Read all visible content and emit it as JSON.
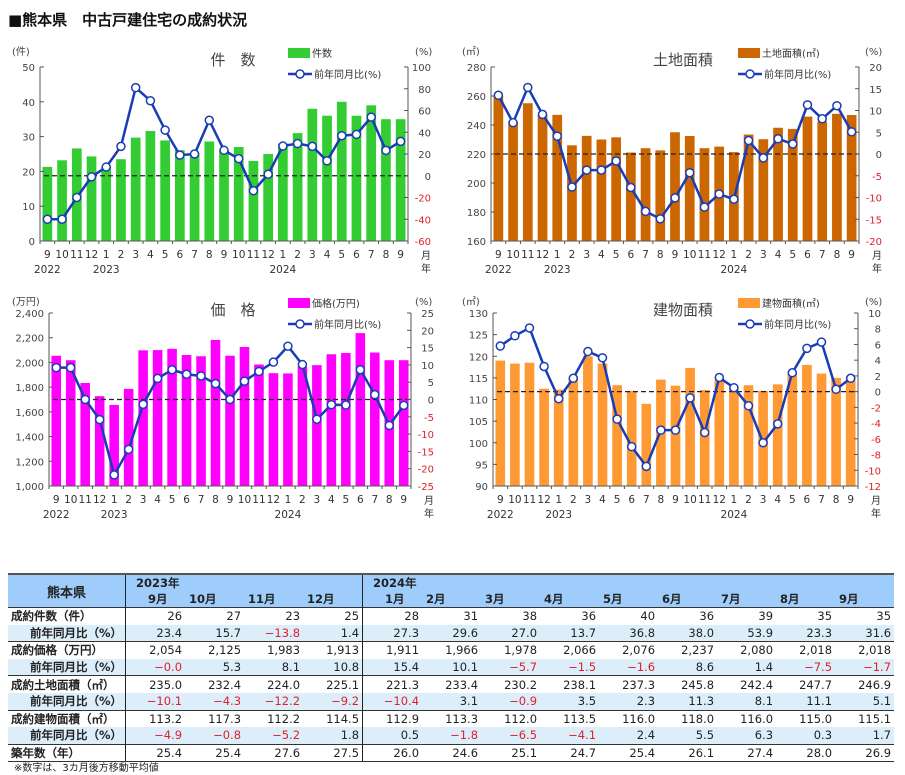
{
  "title": "■熊本県　中古戸建住宅の成約状況",
  "months": [
    "9",
    "10",
    "11",
    "12",
    "1",
    "2",
    "3",
    "4",
    "5",
    "6",
    "7",
    "8",
    "9",
    "10",
    "11",
    "12",
    "1",
    "2",
    "3",
    "4",
    "5",
    "6",
    "7",
    "8",
    "9"
  ],
  "years": [
    {
      "label": "2022",
      "index": 0
    },
    {
      "label": "2023",
      "index": 4
    },
    {
      "label": "2024",
      "index": 16
    }
  ],
  "axis_month_label": "月",
  "axis_year_label": "年",
  "line_legend": "前年同月比(%)",
  "colors": {
    "line": "#1a3cb4",
    "negative": "#e0202a"
  },
  "chart_data": [
    {
      "type": "bar",
      "title": "件　数",
      "left_unit": "(件)",
      "right_unit": "(%)",
      "bar_legend": "件数",
      "bar_color": "#33cc33",
      "left_range": [
        0,
        50
      ],
      "left_step": 10,
      "right_range": [
        -60,
        100
      ],
      "right_step": 20,
      "left_comma": false,
      "bars": [
        21.3,
        23.2,
        26.6,
        24.3,
        21.5,
        23.5,
        29.7,
        31.6,
        28.9,
        26.1,
        25.3,
        28.6,
        26,
        27,
        23,
        25,
        28,
        31,
        38,
        36,
        40,
        36,
        39,
        35,
        35
      ],
      "yoy": [
        -40,
        -40,
        -20,
        -1,
        8,
        27,
        81,
        69,
        42,
        19,
        20,
        51,
        23.4,
        15.7,
        -13.8,
        1.4,
        27.3,
        29.6,
        27.0,
        13.7,
        36.8,
        38.0,
        53.9,
        23.3,
        31.6
      ]
    },
    {
      "type": "bar",
      "title": "土地面積",
      "left_unit": "(㎡)",
      "right_unit": "(%)",
      "bar_legend": "土地面積(㎡)",
      "bar_color": "#cc6600",
      "left_range": [
        160,
        280
      ],
      "left_step": 20,
      "right_range": [
        -20,
        20
      ],
      "right_step": 5,
      "left_comma": false,
      "bars": [
        260,
        242,
        255,
        247,
        247,
        226,
        232.5,
        230,
        231.5,
        221,
        224,
        222.5,
        235.0,
        232.4,
        224.0,
        225.1,
        221.3,
        233.4,
        230.2,
        238.1,
        237.3,
        245.8,
        242.4,
        247.7,
        246.9
      ],
      "yoy": [
        13.5,
        7.2,
        15.3,
        9.1,
        4.1,
        -7.6,
        -3.7,
        -3.7,
        -1.6,
        -7.7,
        -13.2,
        -14.9,
        -10.1,
        -4.3,
        -12.2,
        -9.2,
        -10.4,
        3.1,
        -0.9,
        3.5,
        2.3,
        11.3,
        8.1,
        11.1,
        5.1
      ]
    },
    {
      "type": "bar",
      "title": "価　格",
      "left_unit": "(万円)",
      "right_unit": "(%)",
      "bar_legend": "価格(万円)",
      "bar_color": "#ff00ff",
      "left_range": [
        1000,
        2400
      ],
      "left_step": 200,
      "right_range": [
        -25,
        25
      ],
      "right_step": 5,
      "left_comma": true,
      "bars": [
        2054,
        2018,
        1834,
        1727,
        1656,
        1786,
        2098,
        2100,
        2110,
        2060,
        2050,
        2182,
        2054,
        2125,
        1983,
        1913,
        1911,
        1966,
        1978,
        2066,
        2076,
        2237,
        2080,
        2018,
        2018
      ],
      "yoy": [
        9.2,
        9.2,
        0,
        -5.8,
        -21.8,
        -14.4,
        -1.4,
        6.1,
        8.6,
        7.3,
        6.8,
        4.6,
        -0.0,
        5.3,
        8.1,
        10.8,
        15.4,
        10.1,
        -5.7,
        -1.5,
        -1.6,
        8.6,
        1.4,
        -7.5,
        -1.7
      ]
    },
    {
      "type": "bar",
      "title": "建物面積",
      "left_unit": "(㎡)",
      "right_unit": "(%)",
      "bar_legend": "建物面積(㎡)",
      "bar_color": "#ff9933",
      "left_range": [
        90,
        130
      ],
      "left_step": 5,
      "right_range": [
        -12,
        10
      ],
      "right_step": 2,
      "left_comma": false,
      "bars": [
        119,
        118.3,
        118.5,
        112.5,
        112.3,
        114.8,
        120,
        118.3,
        113.3,
        112,
        109,
        114.6,
        113.2,
        117.3,
        112.2,
        114.5,
        112.9,
        113.3,
        112.0,
        113.5,
        116.0,
        118.0,
        116.0,
        115.0,
        115.1
      ],
      "yoy": [
        5.8,
        7.1,
        8.1,
        3.2,
        -0.9,
        1.7,
        5.1,
        4.3,
        -3.5,
        -7.0,
        -9.5,
        -4.9,
        -4.9,
        -0.8,
        -5.2,
        1.8,
        0.5,
        -1.8,
        -6.5,
        -4.1,
        2.4,
        5.5,
        6.3,
        0.3,
        1.7
      ]
    }
  ],
  "table": {
    "corner": "熊本県",
    "year_2023": "2023年",
    "year_2024": "2024年",
    "columns": [
      "9月",
      "10月",
      "11月",
      "12月",
      "1月",
      "2月",
      "3月",
      "4月",
      "5月",
      "6月",
      "7月",
      "8月",
      "9月"
    ],
    "rows": [
      {
        "label": "成約件数（件）",
        "sub": false,
        "values": [
          "26",
          "27",
          "23",
          "25",
          "28",
          "31",
          "38",
          "36",
          "40",
          "36",
          "39",
          "35",
          "35"
        ]
      },
      {
        "label": "前年同月比（%）",
        "sub": true,
        "values": [
          "23.4",
          "15.7",
          "−13.8",
          "1.4",
          "27.3",
          "29.6",
          "27.0",
          "13.7",
          "36.8",
          "38.0",
          "53.9",
          "23.3",
          "31.6"
        ]
      },
      {
        "label": "成約価格（万円）",
        "sub": false,
        "values": [
          "2,054",
          "2,125",
          "1,983",
          "1,913",
          "1,911",
          "1,966",
          "1,978",
          "2,066",
          "2,076",
          "2,237",
          "2,080",
          "2,018",
          "2,018"
        ]
      },
      {
        "label": "前年同月比（%）",
        "sub": true,
        "values": [
          "−0.0",
          "5.3",
          "8.1",
          "10.8",
          "15.4",
          "10.1",
          "−5.7",
          "−1.5",
          "−1.6",
          "8.6",
          "1.4",
          "−7.5",
          "−1.7"
        ]
      },
      {
        "label": "成約土地面積（㎡）",
        "sub": false,
        "values": [
          "235.0",
          "232.4",
          "224.0",
          "225.1",
          "221.3",
          "233.4",
          "230.2",
          "238.1",
          "237.3",
          "245.8",
          "242.4",
          "247.7",
          "246.9"
        ]
      },
      {
        "label": "前年同月比（%）",
        "sub": true,
        "values": [
          "−10.1",
          "−4.3",
          "−12.2",
          "−9.2",
          "−10.4",
          "3.1",
          "−0.9",
          "3.5",
          "2.3",
          "11.3",
          "8.1",
          "11.1",
          "5.1"
        ]
      },
      {
        "label": "成約建物面積（㎡）",
        "sub": false,
        "values": [
          "113.2",
          "117.3",
          "112.2",
          "114.5",
          "112.9",
          "113.3",
          "112.0",
          "113.5",
          "116.0",
          "118.0",
          "116.0",
          "115.0",
          "115.1"
        ]
      },
      {
        "label": "前年同月比（%）",
        "sub": true,
        "values": [
          "−4.9",
          "−0.8",
          "−5.2",
          "1.8",
          "0.5",
          "−1.8",
          "−6.5",
          "−4.1",
          "2.4",
          "5.5",
          "6.3",
          "0.3",
          "1.7"
        ]
      },
      {
        "label": "築年数（年）",
        "sub": false,
        "values": [
          "25.4",
          "25.4",
          "27.6",
          "27.5",
          "26.0",
          "24.6",
          "25.1",
          "24.7",
          "25.4",
          "26.1",
          "27.4",
          "28.0",
          "26.9"
        ]
      }
    ],
    "note": "※数字は、3カ月後方移動平均値"
  }
}
